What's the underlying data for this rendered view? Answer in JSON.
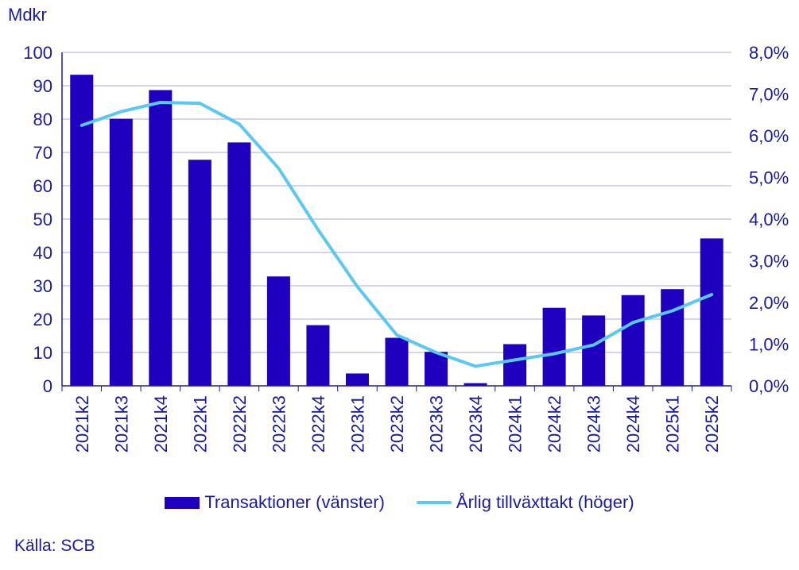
{
  "chart_data": {
    "type": "bar",
    "y_unit_label": "Mdkr",
    "categories": [
      "2021k2",
      "2021k3",
      "2021k4",
      "2022k1",
      "2022k2",
      "2022k3",
      "2022k4",
      "2023k1",
      "2023k2",
      "2023k3",
      "2023k4",
      "2024k1",
      "2024k2",
      "2024k3",
      "2024k4",
      "2025k1",
      "2025k2"
    ],
    "series": [
      {
        "name": "Transaktioner (vänster)",
        "type": "bar",
        "axis": "left",
        "color": "#1e00be",
        "values": [
          93.3,
          80.1,
          88.7,
          67.8,
          73.0,
          32.8,
          18.2,
          3.7,
          14.4,
          10.2,
          0.8,
          12.5,
          23.4,
          21.1,
          27.2,
          29.0,
          44.2
        ]
      },
      {
        "name": "Årlig tillväxttakt (höger)",
        "type": "line",
        "axis": "right",
        "color": "#5ac8f0",
        "values": [
          6.25,
          6.58,
          6.8,
          6.78,
          6.28,
          5.22,
          3.75,
          2.38,
          1.22,
          0.8,
          0.47,
          0.62,
          0.77,
          0.98,
          1.52,
          1.8,
          2.19
        ]
      }
    ],
    "y_left": {
      "min": 0,
      "max": 100,
      "ticks": [
        "0",
        "10",
        "20",
        "30",
        "40",
        "50",
        "60",
        "70",
        "80",
        "90",
        "100"
      ]
    },
    "y_right": {
      "min": 0,
      "max": 8,
      "ticks": [
        "0,0%",
        "1,0%",
        "2,0%",
        "3,0%",
        "4,0%",
        "5,0%",
        "6,0%",
        "7,0%",
        "8,0%"
      ]
    },
    "grid": true,
    "legend_position": "bottom"
  },
  "source": "Källa: SCB"
}
